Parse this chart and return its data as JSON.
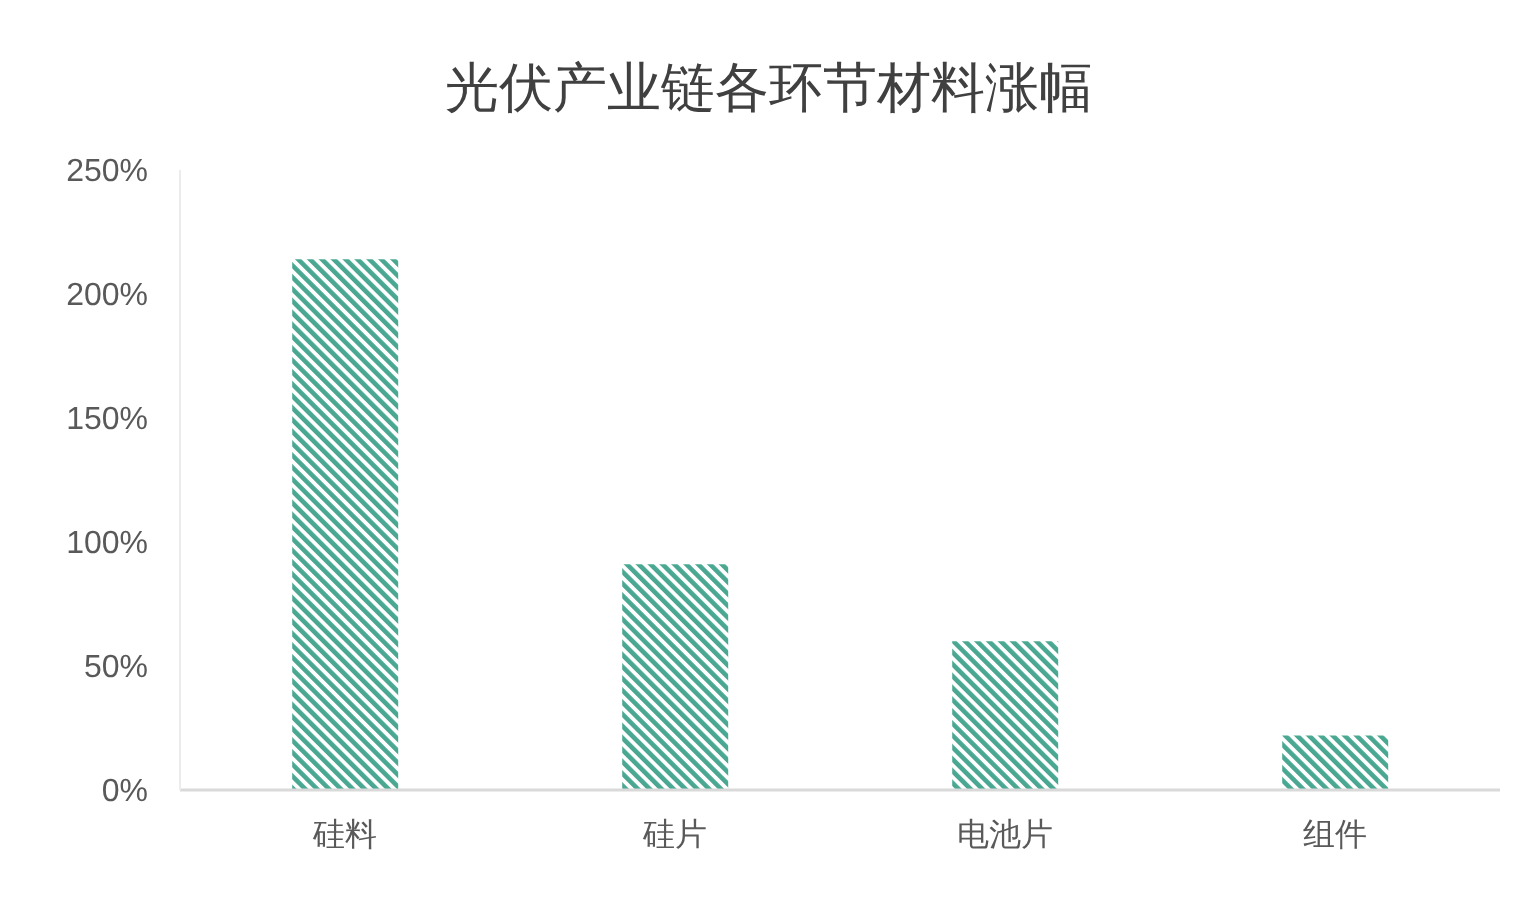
{
  "chart_data": {
    "type": "bar",
    "title": "光伏产业链各环节材料涨幅",
    "categories": [
      "硅料",
      "硅片",
      "电池片",
      "组件"
    ],
    "values": [
      214,
      91,
      60,
      22
    ],
    "color": "#4aa892",
    "ylim": [
      0,
      250
    ],
    "yticks": [
      {
        "value": 0,
        "label": "0%"
      },
      {
        "value": 50,
        "label": "50%"
      },
      {
        "value": 100,
        "label": "100%"
      },
      {
        "value": 150,
        "label": "150%"
      },
      {
        "value": 200,
        "label": "200%"
      },
      {
        "value": 250,
        "label": "250%"
      }
    ]
  }
}
